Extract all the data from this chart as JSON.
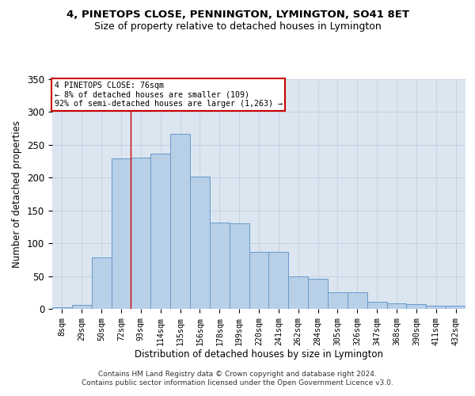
{
  "title1": "4, PINETOPS CLOSE, PENNINGTON, LYMINGTON, SO41 8ET",
  "title2": "Size of property relative to detached houses in Lymington",
  "xlabel": "Distribution of detached houses by size in Lymington",
  "ylabel": "Number of detached properties",
  "categories": [
    "8sqm",
    "29sqm",
    "50sqm",
    "72sqm",
    "93sqm",
    "114sqm",
    "135sqm",
    "156sqm",
    "178sqm",
    "199sqm",
    "220sqm",
    "241sqm",
    "262sqm",
    "284sqm",
    "305sqm",
    "326sqm",
    "347sqm",
    "368sqm",
    "390sqm",
    "411sqm",
    "432sqm"
  ],
  "values": [
    3,
    6,
    79,
    229,
    230,
    237,
    267,
    201,
    131,
    130,
    87,
    87,
    50,
    46,
    25,
    25,
    11,
    8,
    7,
    5,
    5
  ],
  "bar_color": "#b8cfe8",
  "bar_edge_color": "#6699cc",
  "grid_color": "#c8d4e4",
  "background_color": "#dce6f0",
  "annotation_box_color": "#ffffff",
  "annotation_box_edge": "#cc0000",
  "property_line_x": 3.5,
  "property_size": "76sqm",
  "pct_smaller": 8,
  "n_smaller": 109,
  "pct_larger_semi": 92,
  "n_larger_semi": 1263,
  "footer1": "Contains HM Land Registry data © Crown copyright and database right 2024.",
  "footer2": "Contains public sector information licensed under the Open Government Licence v3.0.",
  "ylim": [
    0,
    350
  ],
  "yticks": [
    0,
    50,
    100,
    150,
    200,
    250,
    300,
    350
  ]
}
